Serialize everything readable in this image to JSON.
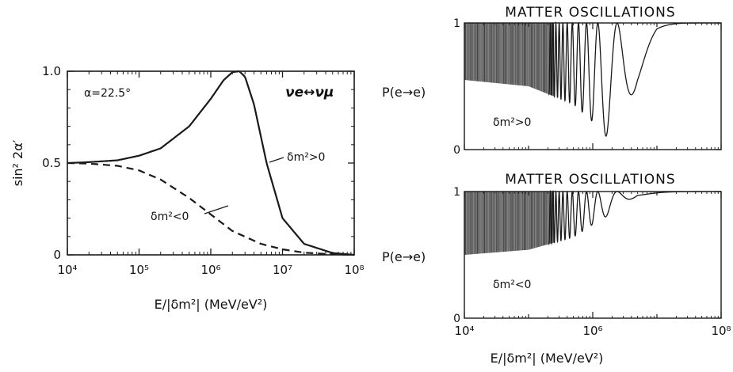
{
  "chart_data": [
    {
      "type": "line",
      "title": "",
      "xlabel": "E/|δm²|  (MeV/eV²)",
      "ylabel": "sin² 2α′",
      "x_scale": "log",
      "xlim": [
        10000,
        100000000
      ],
      "ylim": [
        0,
        1
      ],
      "x_ticks": [
        "10⁴",
        "10⁵",
        "10⁶",
        "10⁷",
        "10⁸"
      ],
      "y_ticks": [
        "0",
        "0.5",
        "1.0"
      ],
      "annotations": {
        "mixing_angle": "α=22.5°",
        "channel": "νe↔νμ"
      },
      "series": [
        {
          "name": "δm²>0",
          "style": "solid",
          "x": [
            10000,
            20000,
            50000,
            100000,
            200000,
            500000,
            1000000,
            1500000,
            2000000,
            2500000,
            3000000,
            4000000,
            6000000,
            10000000,
            20000000,
            50000000,
            100000000
          ],
          "y": [
            0.5,
            0.505,
            0.515,
            0.54,
            0.58,
            0.7,
            0.85,
            0.95,
            0.995,
            1.0,
            0.97,
            0.82,
            0.5,
            0.2,
            0.06,
            0.01,
            0.0
          ]
        },
        {
          "name": "δm²<0",
          "style": "dashed",
          "x": [
            10000,
            20000,
            50000,
            100000,
            200000,
            500000,
            1000000,
            2000000,
            5000000,
            10000000,
            20000000,
            50000000,
            100000000
          ],
          "y": [
            0.5,
            0.497,
            0.485,
            0.46,
            0.41,
            0.31,
            0.22,
            0.13,
            0.06,
            0.03,
            0.012,
            0.003,
            0.0
          ]
        }
      ]
    },
    {
      "type": "line",
      "title": "MATTER  OSCILLATIONS",
      "xlabel": "",
      "ylabel": "P(e→e)",
      "x_scale": "log",
      "xlim": [
        10000,
        100000000
      ],
      "ylim": [
        0,
        1
      ],
      "y_ticks": [
        "0",
        "1"
      ],
      "annotation": "δm²>0",
      "envelope_min_x": [
        10000,
        100000,
        500000,
        1000000,
        2500000,
        5000000,
        10000000,
        30000000,
        100000000
      ],
      "envelope_min_y": [
        0.55,
        0.5,
        0.36,
        0.22,
        0.0,
        0.55,
        0.9,
        0.99,
        1.0
      ],
      "first_resolved_oscillation_x": 250000
    },
    {
      "type": "line",
      "title": "MATTER  OSCILLATIONS",
      "xlabel": "E/|δm²|  (MeV/eV²)",
      "ylabel": "P(e→e)",
      "x_scale": "log",
      "xlim": [
        10000,
        100000000
      ],
      "ylim": [
        0,
        1
      ],
      "x_ticks": [
        "10⁴",
        "10⁶",
        "10⁸"
      ],
      "y_ticks": [
        "0",
        "1"
      ],
      "annotation": "δm²<0",
      "envelope_min_x": [
        10000,
        100000,
        500000,
        1000000,
        2000000,
        5000000,
        100000000
      ],
      "envelope_min_y": [
        0.5,
        0.54,
        0.64,
        0.74,
        0.83,
        0.97,
        1.0
      ],
      "first_resolved_oscillation_x": 250000
    }
  ]
}
